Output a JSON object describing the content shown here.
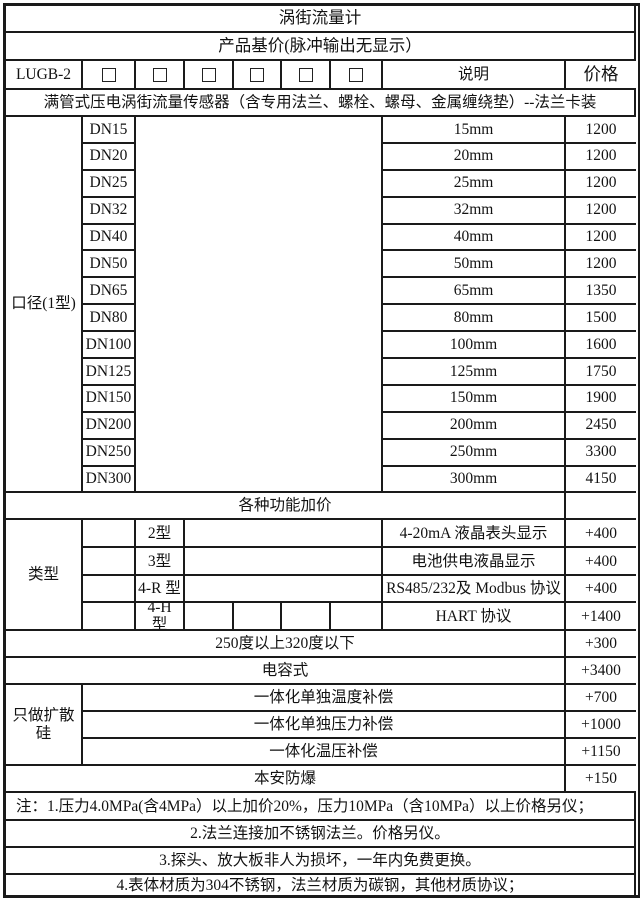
{
  "title": "涡街流量计",
  "subtitle": "产品基价(脉冲输出无显示）",
  "header": {
    "model": "LUGB-2",
    "desc_label": "说明",
    "price_label": "价格",
    "checkbox_icon": "empty-square"
  },
  "sensor_description": "满管式压电涡街流量传感器（含专用法兰、螺栓、螺母、金属缠绕垫）--法兰卡装",
  "diameter_section": {
    "label": "口径(1型)",
    "rows": [
      {
        "code": "DN15",
        "desc": "15mm",
        "price": "1200"
      },
      {
        "code": "DN20",
        "desc": "20mm",
        "price": "1200"
      },
      {
        "code": "DN25",
        "desc": "25mm",
        "price": "1200"
      },
      {
        "code": "DN32",
        "desc": "32mm",
        "price": "1200"
      },
      {
        "code": "DN40",
        "desc": "40mm",
        "price": "1200"
      },
      {
        "code": "DN50",
        "desc": "50mm",
        "price": "1200"
      },
      {
        "code": "DN65",
        "desc": "65mm",
        "price": "1350"
      },
      {
        "code": "DN80",
        "desc": "80mm",
        "price": "1500"
      },
      {
        "code": "DN100",
        "desc": "100mm",
        "price": "1600"
      },
      {
        "code": "DN125",
        "desc": "125mm",
        "price": "1750"
      },
      {
        "code": "DN150",
        "desc": "150mm",
        "price": "1900"
      },
      {
        "code": "DN200",
        "desc": "200mm",
        "price": "2450"
      },
      {
        "code": "DN250",
        "desc": "250mm",
        "price": "3300"
      },
      {
        "code": "DN300",
        "desc": "300mm",
        "price": "4150"
      }
    ]
  },
  "addons_header": "各种功能加价",
  "type_section": {
    "label": "类型",
    "rows": [
      {
        "code": "2型",
        "desc": "4-20mA 液晶表头显示",
        "price": "+400"
      },
      {
        "code": "3型",
        "desc": "电池供电液晶显示",
        "price": "+400"
      },
      {
        "code": "4-R 型",
        "desc": "RS485/232及 Modbus 协议",
        "price": "+400"
      },
      {
        "code": "4-H 型",
        "desc": "HART 协议",
        "price": "+1400"
      }
    ]
  },
  "temp_row": {
    "desc": "250度以上320度以下",
    "price": "+300"
  },
  "capacitive_row": {
    "desc": "电容式",
    "price": "+3400"
  },
  "silicon_section": {
    "label": "只做扩散硅",
    "rows": [
      {
        "desc": "一体化单独温度补偿",
        "price": "+700"
      },
      {
        "desc": "一体化单独压力补偿",
        "price": "+1000"
      },
      {
        "desc": "一体化温压补偿",
        "price": "+1150"
      }
    ]
  },
  "safety_row": {
    "desc": "本安防爆",
    "price": "+150"
  },
  "notes": [
    "注：1.压力4.0MPa(含4MPa）以上加价20%，压力10MPa（含10MPa）以上价格另仪；",
    "2.法兰连接加不锈钢法兰。价格另仪。",
    "3.探头、放大板非人为损坏，一年内免费更换。",
    "4.表体材质为304不锈钢，法兰材质为碳钢，其他材质协议；"
  ]
}
